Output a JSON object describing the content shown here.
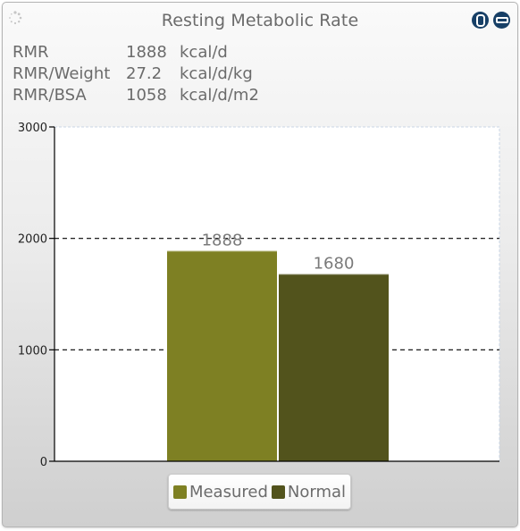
{
  "window": {
    "title": "Resting Metabolic Rate",
    "refresh_icon": "refresh-spinner-icon",
    "buttons": [
      {
        "name": "maximize-icon",
        "color": "#173f66"
      },
      {
        "name": "minimize-icon",
        "color": "#173f66"
      }
    ]
  },
  "stats": [
    {
      "label": "RMR",
      "value": "1888",
      "unit": "kcal/d"
    },
    {
      "label": "RMR/Weight",
      "value": "27.2",
      "unit": "kcal/d/kg"
    },
    {
      "label": "RMR/BSA",
      "value": "1058",
      "unit": "kcal/d/m2"
    }
  ],
  "chart_data": {
    "type": "bar",
    "categories": [
      ""
    ],
    "series": [
      {
        "name": "Measured",
        "values": [
          1888
        ],
        "color": "#7e8023"
      },
      {
        "name": "Normal",
        "values": [
          1680
        ],
        "color": "#52531c"
      }
    ],
    "ylim": [
      0,
      3000
    ],
    "yticks": [
      0,
      1000,
      2000,
      3000
    ],
    "data_labels": [
      "1888",
      "1680"
    ],
    "grid": "dashed horizontal at 1000, 2000",
    "legend": "bottom-center"
  }
}
